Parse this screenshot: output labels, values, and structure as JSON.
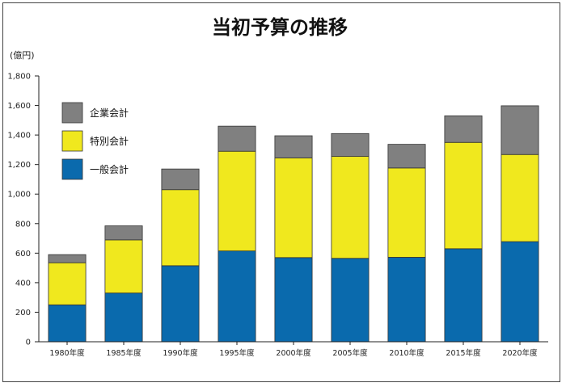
{
  "chart_data": {
    "type": "bar",
    "stacked": true,
    "title": "当初予算の推移",
    "ylabel": "(億円)",
    "ylim": [
      0,
      1800
    ],
    "yticks": [
      0,
      200,
      400,
      600,
      800,
      1000,
      1200,
      1400,
      1600,
      1800
    ],
    "yticklabels": [
      "0",
      "200",
      "400",
      "600",
      "800",
      "1,000",
      "1,200",
      "1,400",
      "1,600",
      "1,800"
    ],
    "categories": [
      "1980年度",
      "1985年度",
      "1990年度",
      "1995年度",
      "2000年度",
      "2005年度",
      "2010年度",
      "2015年度",
      "2020年度"
    ],
    "legend_position": "top-left",
    "grid": false,
    "series": [
      {
        "name": "一般会計",
        "color": "#0a6aad",
        "values": [
          250,
          330,
          515,
          615,
          570,
          565,
          572,
          630,
          678
        ]
      },
      {
        "name": "特別会計",
        "color": "#f0e81e",
        "values": [
          285,
          360,
          515,
          675,
          675,
          690,
          605,
          720,
          590
        ]
      },
      {
        "name": "企業会計",
        "color": "#808080",
        "values": [
          55,
          95,
          140,
          170,
          150,
          155,
          160,
          180,
          330
        ]
      }
    ]
  }
}
